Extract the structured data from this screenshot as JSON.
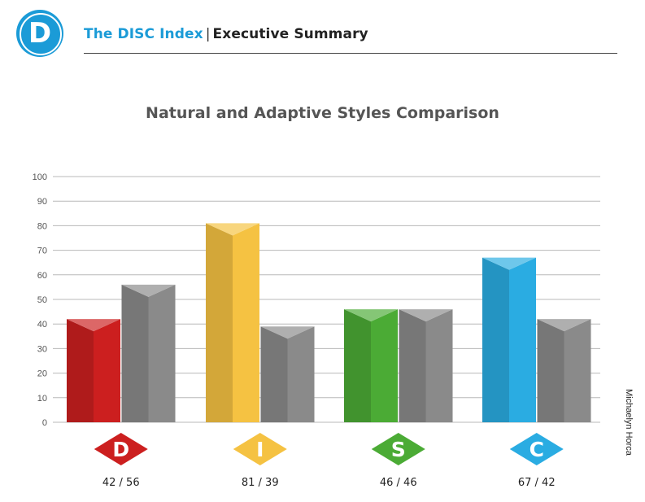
{
  "header": {
    "logo_letter": "D",
    "brand": "The DISC Index",
    "separator": "|",
    "section": "Executive Summary"
  },
  "side_credit": "Michaelyn Horca",
  "colors": {
    "brand": "#1b9bd7",
    "D": "#cc1f1f",
    "I": "#f5c242",
    "S": "#4bab35",
    "C": "#2aace2",
    "adaptive_gray": "#8a8a8a"
  },
  "chart_data": {
    "type": "bar",
    "title": "Natural and Adaptive Styles Comparison",
    "categories": [
      "D",
      "I",
      "S",
      "C"
    ],
    "series": [
      {
        "values": [
          42,
          81,
          46,
          67
        ]
      },
      {
        "values": [
          56,
          39,
          46,
          42
        ]
      }
    ],
    "value_labels": [
      "42 / 56",
      "81 / 39",
      "46 / 46",
      "67 / 42"
    ],
    "ylim": [
      0,
      100
    ],
    "yticks": [
      0,
      10,
      20,
      30,
      40,
      50,
      60,
      70,
      80,
      90,
      100
    ],
    "grid": true,
    "legend": "none"
  }
}
